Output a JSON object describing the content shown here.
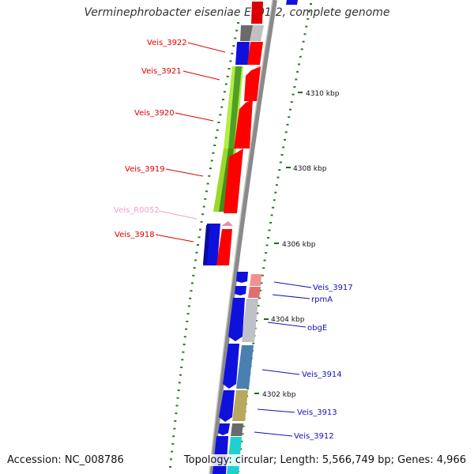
{
  "title": "Verminephrobacter eiseniae EF01-2, complete genome",
  "footer": {
    "accession": "Accession: NC_008786",
    "summary": "Topology: circular; Length: 5,566,749 bp; Genes: 4,966"
  },
  "colors": {
    "left_label": "#dd0000",
    "left_rna_label": "#f0a0c8",
    "right_label": "#1010c0",
    "backbone": "#8a8a8a",
    "tick_dots": "#2a7a2a"
  },
  "scale_labels": [
    "4310 kbp",
    "4308 kbp",
    "4306 kbp",
    "4304 kbp",
    "4302 kbp"
  ],
  "left_genes": [
    {
      "label": "Veis_3922",
      "color": "#dd0000"
    },
    {
      "label": "Veis_3921",
      "color": "#dd0000"
    },
    {
      "label": "Veis_3920",
      "color": "#dd0000"
    },
    {
      "label": "Veis_3919",
      "color": "#dd0000"
    },
    {
      "label": "Veis_R0052",
      "color": "#f0a0c8"
    },
    {
      "label": "Veis_3918",
      "color": "#dd0000"
    }
  ],
  "right_genes": [
    {
      "label": "Veis_3917"
    },
    {
      "label": "rpmA"
    },
    {
      "label": "obgE"
    },
    {
      "label": "Veis_3914"
    },
    {
      "label": "Veis_3913"
    },
    {
      "label": "Veis_3912"
    }
  ]
}
